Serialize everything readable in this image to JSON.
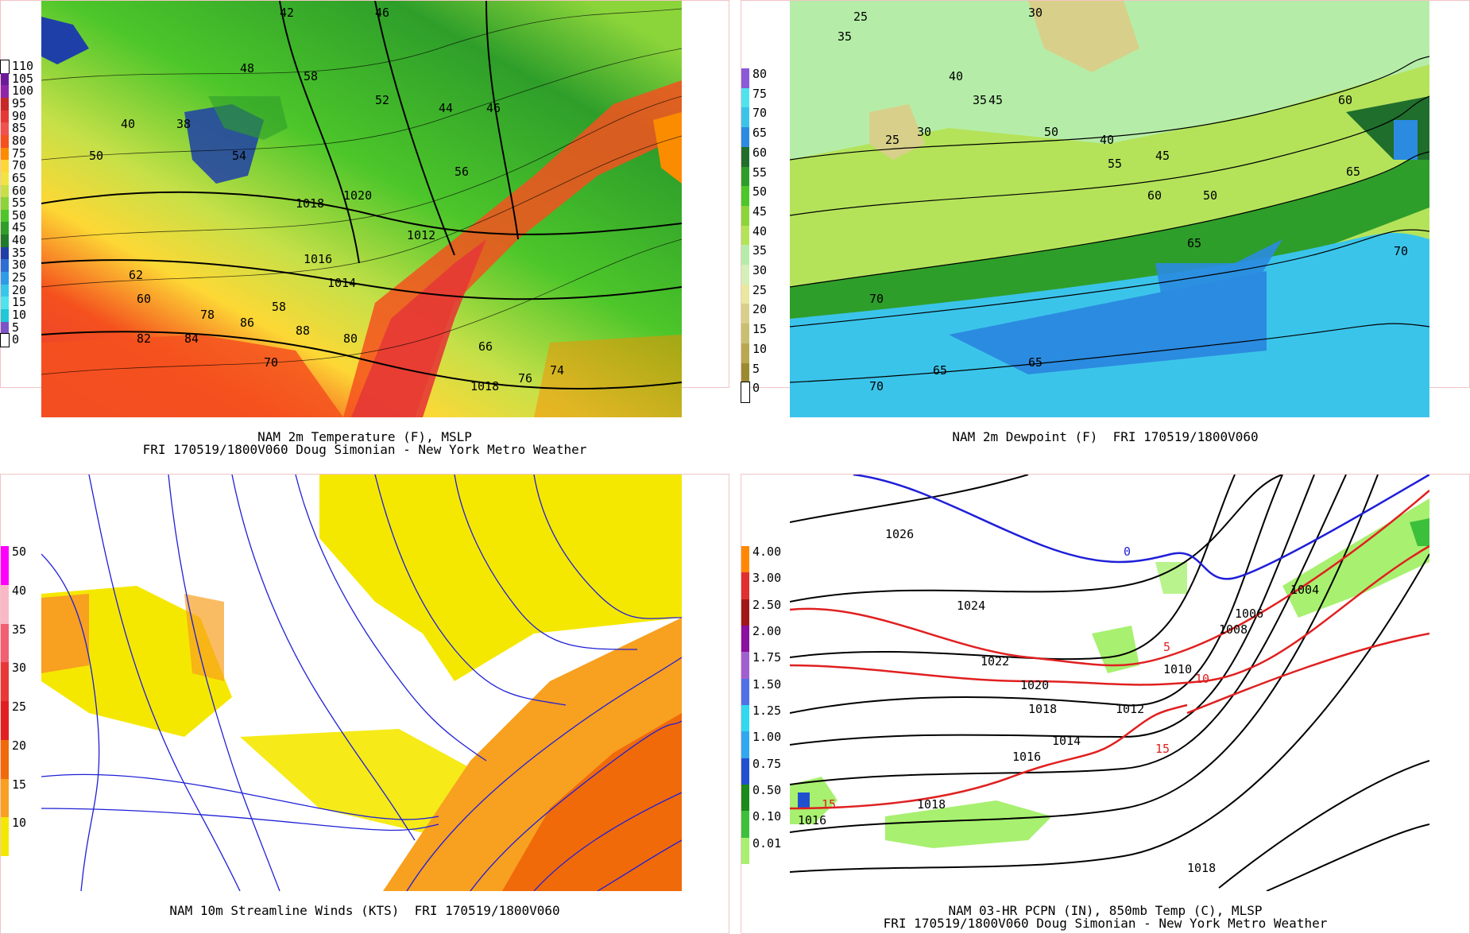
{
  "panels": [
    {
      "id": "temperature",
      "title_line1": "NAM 2m Temperature (F), MSLP",
      "title_line2": "FRI 170519/1800V060 Doug Simonian - New York Metro Weather",
      "legend": {
        "labels": [
          "110",
          "105",
          "100",
          "95",
          "90",
          "85",
          "80",
          "75",
          "70",
          "65",
          "60",
          "55",
          "50",
          "45",
          "40",
          "35",
          "30",
          "25",
          "20",
          "15",
          "10",
          "5",
          "0"
        ],
        "colors": [
          "#ffffff",
          "#6a1b9a",
          "#8e24aa",
          "#c62828",
          "#e53935",
          "#ef5350",
          "#f4511e",
          "#fb8c00",
          "#fdd835",
          "#f0e442",
          "#c6e048",
          "#8bd43a",
          "#4cc62a",
          "#2e9e2a",
          "#1f7a2c",
          "#1f3fa8",
          "#2b6fd6",
          "#2e9be8",
          "#36c7ea",
          "#4fe3ee",
          "#1ec8d8",
          "#7a55c8",
          "#ffffff"
        ]
      },
      "contour_labels": [
        "42",
        "46",
        "48",
        "58",
        "52",
        "44",
        "46",
        "40",
        "38",
        "54",
        "50",
        "56",
        "1020",
        "1018",
        "1016",
        "1014",
        "1012",
        "62",
        "60",
        "58",
        "78",
        "82",
        "84",
        "86",
        "88",
        "80",
        "70",
        "76",
        "74",
        "66",
        "1018"
      ]
    },
    {
      "id": "dewpoint",
      "title_line1": "NAM 2m Dewpoint (F)  FRI 170519/1800V060",
      "title_line2": "",
      "legend": {
        "labels": [
          "80",
          "75",
          "70",
          "65",
          "60",
          "55",
          "50",
          "45",
          "40",
          "35",
          "30",
          "25",
          "20",
          "15",
          "10",
          "5",
          "0"
        ],
        "colors": [
          "#8a5ad8",
          "#4fe3ee",
          "#3bc4ea",
          "#2b8be0",
          "#1f6e2c",
          "#2e9e2a",
          "#4cc62a",
          "#8bd43a",
          "#b4e35a",
          "#b5eda8",
          "#d4f0b8",
          "#e8e8a0",
          "#d8d08a",
          "#c8c070",
          "#b8a850",
          "#9a8a30",
          "#ffffff"
        ]
      },
      "contour_labels": [
        "25",
        "30",
        "35",
        "40",
        "45",
        "50",
        "55",
        "60",
        "65",
        "70",
        "25",
        "30",
        "35",
        "40",
        "45",
        "50",
        "60",
        "65",
        "70",
        "65",
        "65",
        "70"
      ]
    },
    {
      "id": "streamlines",
      "title_line1": "NAM 10m Streamline Winds (KTS)  FRI 170519/1800V060",
      "title_line2": "",
      "legend": {
        "labels": [
          "50",
          "40",
          "35",
          "30",
          "25",
          "20",
          "15",
          "10"
        ],
        "colors": [
          "#ff00ff",
          "#f8b8c8",
          "#f06070",
          "#e83838",
          "#e02020",
          "#f06a0a",
          "#f8a020",
          "#f5e800"
        ]
      }
    },
    {
      "id": "precip",
      "title_line1": "NAM 03-HR PCPN (IN), 850mb Temp (C), MLSP",
      "title_line2": "FRI 170519/1800V060 Doug Simonian - New York Metro Weather",
      "legend": {
        "labels": [
          "4.00",
          "3.00",
          "2.50",
          "2.00",
          "1.75",
          "1.50",
          "1.25",
          "1.00",
          "0.75",
          "0.50",
          "0.10",
          "0.01"
        ],
        "colors": [
          "#ff8800",
          "#e03030",
          "#a01818",
          "#8a10a0",
          "#a060d0",
          "#5070e8",
          "#30d8f0",
          "#30a8f0",
          "#2050d0",
          "#1a8a1a",
          "#3cc03c",
          "#a8f070"
        ]
      },
      "isobars": [
        "1026",
        "1024",
        "1022",
        "1020",
        "1018",
        "1016",
        "1014",
        "1012",
        "1010",
        "1008",
        "1006",
        "1004",
        "1018",
        "1016",
        "1018"
      ],
      "isotherms": [
        "0",
        "5",
        "10",
        "15",
        "15"
      ]
    }
  ]
}
